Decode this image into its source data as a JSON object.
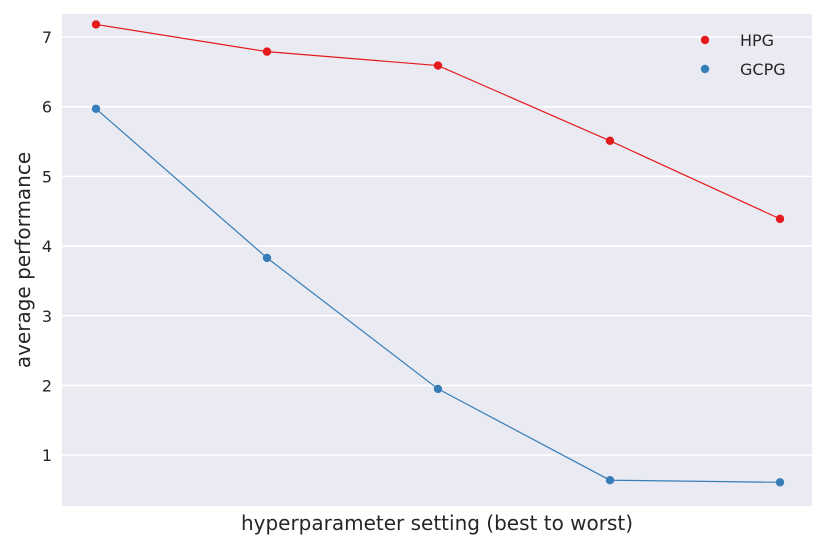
{
  "chart_data": {
    "type": "line",
    "xlabel": "hyperparameter setting (best to worst)",
    "ylabel": "average performance",
    "x": [
      1,
      2,
      3,
      4,
      5
    ],
    "ylim": [
      0.27,
      7.33
    ],
    "yticks": [
      1,
      2,
      3,
      4,
      5,
      6,
      7
    ],
    "xticks_shown": false,
    "grid": "horizontal",
    "background": "#eaeaf2",
    "legend_position": "top-right",
    "series": [
      {
        "name": "HPG",
        "color": "#e41a1c",
        "values": [
          7.18,
          6.79,
          6.59,
          5.51,
          4.39
        ]
      },
      {
        "name": "GCPG",
        "color": "#377eb8",
        "values": [
          5.97,
          3.83,
          1.95,
          0.64,
          0.61
        ]
      }
    ]
  }
}
